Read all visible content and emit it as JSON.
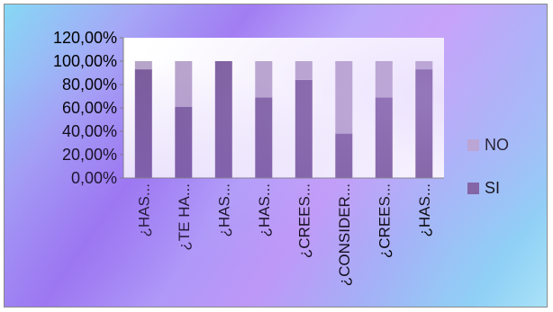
{
  "chart_data": {
    "type": "bar",
    "stacked": true,
    "categories": [
      "¿HAS...",
      "¿TE HA...",
      "¿HAS...",
      "¿HAS...",
      "¿CREES...",
      "¿CONSIDER...",
      "¿CREES...",
      "¿HAS..."
    ],
    "series": [
      {
        "name": "SI",
        "values": [
          93,
          61,
          100,
          69,
          84,
          38,
          69,
          93
        ],
        "color": "#7a5c9a"
      },
      {
        "name": "NO",
        "values": [
          7,
          39,
          0,
          31,
          16,
          62,
          31,
          7
        ],
        "color": "#b7a4c9"
      }
    ],
    "y_ticks": [
      "0,00%",
      "20,00%",
      "40,00%",
      "60,00%",
      "80,00%",
      "100,00%",
      "120,00%"
    ],
    "ylim": [
      0,
      120
    ],
    "legend_position": "right",
    "grid": false
  }
}
